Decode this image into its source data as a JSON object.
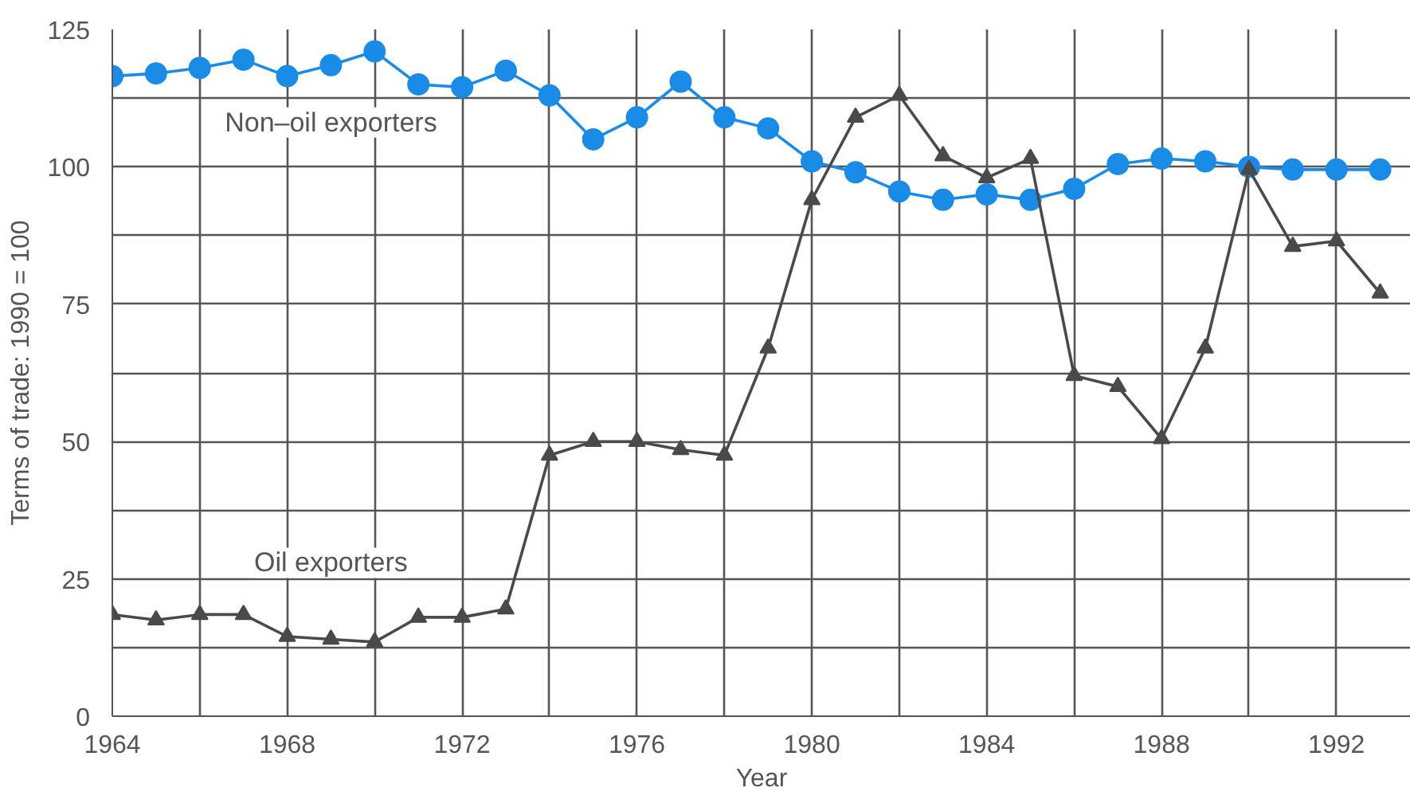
{
  "chart_data": {
    "type": "line",
    "xlabel": "Year",
    "ylabel": "Terms of trade: 1990 = 100",
    "x": [
      1964,
      1965,
      1966,
      1967,
      1968,
      1969,
      1970,
      1971,
      1972,
      1973,
      1974,
      1975,
      1976,
      1977,
      1978,
      1979,
      1980,
      1981,
      1982,
      1983,
      1984,
      1985,
      1986,
      1987,
      1988,
      1989,
      1990,
      1991,
      1992,
      1993
    ],
    "series": [
      {
        "name": "Non–oil exporters",
        "color": "#1a8be6",
        "marker": "circle",
        "values": [
          116.5,
          117,
          118,
          119.5,
          116.5,
          118.5,
          121,
          115,
          114.5,
          117.5,
          113,
          105,
          109,
          115.5,
          109,
          107,
          101,
          99,
          95.5,
          94,
          95,
          94,
          96,
          100.5,
          101.5,
          101,
          100,
          99.5,
          99.5,
          99.5
        ]
      },
      {
        "name": "Oil exporters",
        "color": "#4a4a4a",
        "marker": "triangle",
        "values": [
          18.5,
          17.5,
          18.5,
          18.5,
          14.5,
          14,
          13.5,
          18,
          18,
          19.5,
          47.5,
          50,
          50,
          48.5,
          47.5,
          67,
          94,
          109,
          113,
          102,
          98,
          101.5,
          62,
          60,
          50.5,
          67,
          99.5,
          85.5,
          86.5,
          77
        ]
      }
    ],
    "xlim": [
      1964,
      1993.7
    ],
    "ylim": [
      0,
      125
    ],
    "xticks": [
      1964,
      {
        "value": 1966,
        "label": null
      },
      1968,
      {
        "value": 1970,
        "label": null
      },
      1972,
      {
        "value": 1974,
        "label": null
      },
      1976,
      {
        "value": 1978,
        "label": null
      },
      1980,
      {
        "value": 1982,
        "label": null
      },
      1984,
      {
        "value": 1986,
        "label": null
      },
      1988,
      {
        "value": 1990,
        "label": null
      },
      1992
    ],
    "yticks": [
      0,
      {
        "value": 12.5,
        "label": null
      },
      25,
      {
        "value": 37.5,
        "label": null
      },
      50,
      {
        "value": 62.5,
        "label": null
      },
      75,
      {
        "value": 87.5,
        "label": null
      },
      100,
      {
        "value": 112.5,
        "label": null
      },
      125
    ],
    "grid": true,
    "line_style": "solid"
  }
}
